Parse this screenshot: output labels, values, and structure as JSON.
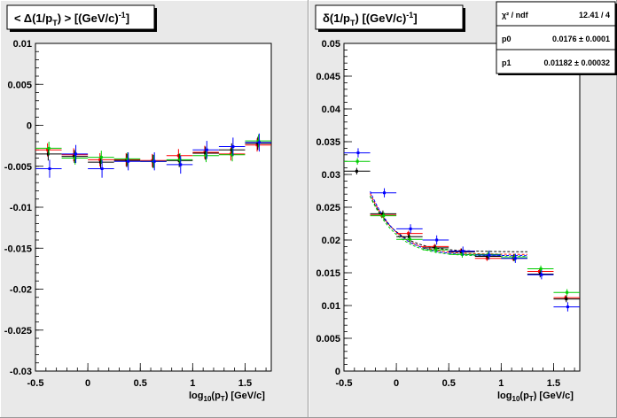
{
  "chart_data": [
    {
      "type": "scatter",
      "title": "< Δ(1/p_T) >  [(GeV/c)^-1]",
      "title_parts": {
        "pre": "< Δ(1/p",
        "sub": "T",
        "mid": ") >  [(GeV/c)",
        "sup": "-1",
        "post": "]"
      },
      "xlabel": "log_10(p_T)  [GeV/c]",
      "xlabel_parts": {
        "a": "log",
        "b": "10",
        "c": "(p",
        "d": "T",
        "e": ")  [GeV/c]"
      },
      "xlim": [
        -0.5,
        1.75
      ],
      "ylim": [
        -0.03,
        0.01
      ],
      "xticks": [
        -0.5,
        0,
        0.5,
        1,
        1.5
      ],
      "xtick_labels": [
        "-0.5",
        "0",
        "0.5",
        "1",
        "1.5"
      ],
      "yticks": [
        -0.03,
        -0.025,
        -0.02,
        -0.015,
        -0.01,
        -0.005,
        0,
        0.005,
        0.01
      ],
      "ytick_labels": [
        "-0.03",
        "-0.025",
        "-0.02",
        "-0.015",
        "-0.01",
        "-0.005",
        "0",
        "0.005",
        "0.01"
      ],
      "series": [
        {
          "color": "#ff0000",
          "x": [
            -0.375,
            -0.125,
            0.125,
            0.375,
            0.625,
            0.875,
            1.125,
            1.375,
            1.625
          ],
          "y": [
            -0.003,
            -0.0036,
            -0.0042,
            -0.0042,
            -0.0043,
            -0.0037,
            -0.0033,
            -0.0035,
            -0.0024
          ],
          "xerr": 0.125,
          "yerr": 0.0008
        },
        {
          "color": "#000000",
          "x": [
            -0.375,
            -0.125,
            0.125,
            0.375,
            0.625,
            0.875,
            1.125,
            1.375,
            1.625
          ],
          "y": [
            -0.0035,
            -0.0038,
            -0.0045,
            -0.0043,
            -0.0044,
            -0.0043,
            -0.0034,
            -0.003,
            -0.0022
          ],
          "xerr": 0.125,
          "yerr": 0.0008
        },
        {
          "color": "#00cc00",
          "x": [
            -0.375,
            -0.125,
            0.125,
            0.375,
            0.625,
            0.875,
            1.125,
            1.375,
            1.625
          ],
          "y": [
            -0.0028,
            -0.004,
            -0.0039,
            -0.0041,
            -0.0044,
            -0.0042,
            -0.0037,
            -0.0036,
            -0.0019
          ],
          "xerr": 0.125,
          "yerr": 0.0008
        },
        {
          "color": "#0000ff",
          "x": [
            -0.375,
            -0.125,
            0.125,
            0.375,
            0.625,
            0.875,
            1.125,
            1.375,
            1.625
          ],
          "y": [
            -0.0053,
            -0.0035,
            -0.0053,
            -0.0044,
            -0.0044,
            -0.0048,
            -0.003,
            -0.0026,
            -0.0021
          ],
          "xerr": 0.125,
          "yerr": 0.0011
        }
      ]
    },
    {
      "type": "scatter",
      "title": "δ(1/p_T)  [(GeV/c)^-1]",
      "title_parts": {
        "pre": "δ(1/p",
        "sub": "T",
        "mid": ")  [(GeV/c)",
        "sup": "-1",
        "post": "]"
      },
      "xlabel": "log_10(p_T)  [GeV/c]",
      "xlabel_parts": {
        "a": "log",
        "b": "10",
        "c": "(p",
        "d": "T",
        "e": ")  [GeV/c]"
      },
      "xlim": [
        -0.5,
        1.75
      ],
      "ylim": [
        0,
        0.05
      ],
      "xticks": [
        -0.5,
        0,
        0.5,
        1,
        1.5
      ],
      "xtick_labels": [
        "-0.5",
        "0",
        "0.5",
        "1",
        "1.5"
      ],
      "yticks": [
        0,
        0.005,
        0.01,
        0.015,
        0.02,
        0.025,
        0.03,
        0.035,
        0.04,
        0.045,
        0.05
      ],
      "ytick_labels": [
        "0",
        "0.005",
        "0.01",
        "0.015",
        "0.02",
        "0.025",
        "0.03",
        "0.035",
        "0.04",
        "0.045",
        "0.05"
      ],
      "stats_box": {
        "rows": [
          {
            "label": "χ² / ndf",
            "value": "12.41 / 4"
          },
          {
            "label": "p0",
            "value": "0.0176 ± 0.0001"
          },
          {
            "label": "p1",
            "value": "0.01182 ± 0.00032"
          }
        ]
      },
      "fit_xrange": [
        -0.25,
        1.25
      ],
      "series": [
        {
          "color": "#ff0000",
          "x": [
            -0.125,
            0.125,
            0.375,
            0.625,
            0.875,
            1.125,
            1.375,
            1.625
          ],
          "y": [
            0.0238,
            0.021,
            0.019,
            0.0183,
            0.0172,
            0.0172,
            0.0152,
            0.0112
          ],
          "xerr": 0.125,
          "yerr": 0.0004,
          "fit": {
            "p0": 0.0178,
            "p1": 0.0115
          }
        },
        {
          "color": "#000000",
          "x": [
            -0.375,
            -0.125,
            0.125,
            0.375,
            0.625,
            0.875,
            1.125,
            1.375,
            1.625
          ],
          "y": [
            0.0305,
            0.024,
            0.0205,
            0.0188,
            0.0182,
            0.0175,
            0.0173,
            0.0148,
            0.011
          ],
          "xerr": 0.125,
          "yerr": 0.0005,
          "fit": {
            "p0": 0.0182,
            "p1": 0.011
          }
        },
        {
          "color": "#00cc00",
          "x": [
            -0.375,
            -0.125,
            0.125,
            0.375,
            0.625,
            0.875,
            1.125,
            1.375,
            1.625
          ],
          "y": [
            0.032,
            0.0237,
            0.0201,
            0.0185,
            0.0178,
            0.0178,
            0.0173,
            0.0156,
            0.012
          ],
          "xerr": 0.125,
          "yerr": 0.0005,
          "fit": {
            "p0": 0.0175,
            "p1": 0.0113
          }
        },
        {
          "color": "#0000ff",
          "x": [
            -0.375,
            -0.125,
            0.125,
            0.375,
            0.625,
            0.875,
            1.125,
            1.375,
            1.625
          ],
          "y": [
            0.0333,
            0.0272,
            0.0217,
            0.02,
            0.0183,
            0.0177,
            0.0172,
            0.0147,
            0.0098
          ],
          "xerr": 0.125,
          "yerr": 0.0007,
          "fit": {
            "p0": 0.0176,
            "p1": 0.01182
          }
        }
      ]
    }
  ]
}
